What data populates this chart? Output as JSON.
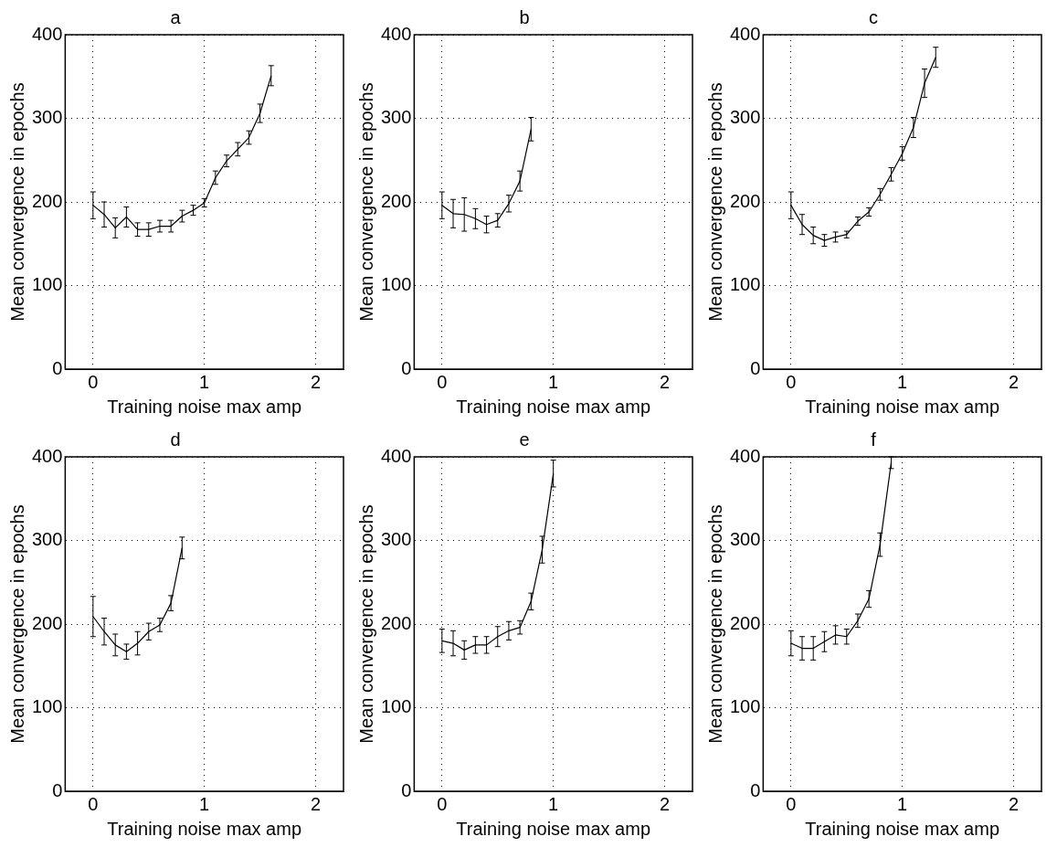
{
  "chart_data": [
    {
      "type": "line",
      "title": "a",
      "xlabel": "Training noise max amp",
      "ylabel": "Mean convergence in epochs",
      "color": "#000000",
      "x": [
        0,
        0.1,
        0.2,
        0.3,
        0.4,
        0.5,
        0.6,
        0.7,
        0.8,
        0.9,
        1.0,
        1.1,
        1.2,
        1.3,
        1.4,
        1.5,
        1.6
      ],
      "values": [
        196,
        185,
        169,
        182,
        167,
        167,
        171,
        171,
        183,
        190,
        199,
        229,
        249,
        263,
        277,
        306,
        351
      ],
      "errors": [
        16,
        15,
        12,
        12,
        8,
        8,
        7,
        7,
        7,
        6,
        5,
        8,
        7,
        8,
        8,
        11,
        12
      ],
      "xlim": [
        -0.25,
        2.25
      ],
      "xticks": [
        0,
        1,
        2
      ],
      "ylim": [
        0,
        400
      ],
      "yticks": [
        0,
        100,
        200,
        300,
        400
      ],
      "grid": true
    },
    {
      "type": "line",
      "title": "b",
      "xlabel": "Training noise max amp",
      "ylabel": "Mean convergence in epochs",
      "color": "#000000",
      "x": [
        0,
        0.1,
        0.2,
        0.3,
        0.4,
        0.5,
        0.6,
        0.7,
        0.8
      ],
      "values": [
        196,
        186,
        185,
        180,
        173,
        178,
        198,
        225,
        287
      ],
      "errors": [
        16,
        17,
        20,
        12,
        10,
        8,
        10,
        12,
        14
      ],
      "xlim": [
        -0.25,
        2.25
      ],
      "xticks": [
        0,
        1,
        2
      ],
      "ylim": [
        0,
        400
      ],
      "yticks": [
        0,
        100,
        200,
        300,
        400
      ],
      "grid": true
    },
    {
      "type": "line",
      "title": "c",
      "xlabel": "Training noise max amp",
      "ylabel": "Mean convergence in epochs",
      "color": "#000000",
      "x": [
        0,
        0.1,
        0.2,
        0.3,
        0.4,
        0.5,
        0.6,
        0.7,
        0.8,
        0.9,
        1.0,
        1.1,
        1.2,
        1.3
      ],
      "values": [
        196,
        173,
        160,
        154,
        158,
        161,
        177,
        188,
        209,
        233,
        258,
        289,
        342,
        373
      ],
      "errors": [
        16,
        12,
        10,
        7,
        6,
        4,
        5,
        5,
        7,
        8,
        8,
        12,
        17,
        12
      ],
      "xlim": [
        -0.25,
        2.25
      ],
      "xticks": [
        0,
        1,
        2
      ],
      "ylim": [
        0,
        400
      ],
      "yticks": [
        0,
        100,
        200,
        300,
        400
      ],
      "grid": true
    },
    {
      "type": "line",
      "title": "d",
      "xlabel": "Training noise max amp",
      "ylabel": "Mean convergence in epochs",
      "color": "#000000",
      "x": [
        0,
        0.1,
        0.2,
        0.3,
        0.4,
        0.5,
        0.6,
        0.7,
        0.8
      ],
      "values": [
        209,
        191,
        175,
        167,
        177,
        191,
        199,
        225,
        291
      ],
      "errors": [
        24,
        16,
        13,
        9,
        14,
        10,
        8,
        9,
        13
      ],
      "xlim": [
        -0.25,
        2.25
      ],
      "xticks": [
        0,
        1,
        2
      ],
      "ylim": [
        0,
        400
      ],
      "yticks": [
        0,
        100,
        200,
        300,
        400
      ],
      "grid": true
    },
    {
      "type": "line",
      "title": "e",
      "xlabel": "Training noise max amp",
      "ylabel": "Mean convergence in epochs",
      "color": "#000000",
      "x": [
        0,
        0.1,
        0.2,
        0.3,
        0.4,
        0.5,
        0.6,
        0.7,
        0.8,
        0.9,
        1.0
      ],
      "values": [
        180,
        177,
        169,
        175,
        175,
        185,
        192,
        196,
        227,
        289,
        380
      ],
      "errors": [
        14,
        15,
        11,
        10,
        10,
        12,
        11,
        8,
        10,
        16,
        16
      ],
      "xlim": [
        -0.25,
        2.25
      ],
      "xticks": [
        0,
        1,
        2
      ],
      "ylim": [
        0,
        400
      ],
      "yticks": [
        0,
        100,
        200,
        300,
        400
      ],
      "grid": true
    },
    {
      "type": "line",
      "title": "f",
      "xlabel": "Training noise max amp",
      "ylabel": "Mean convergence in epochs",
      "color": "#000000",
      "x": [
        0,
        0.1,
        0.2,
        0.3,
        0.4,
        0.5,
        0.6,
        0.7,
        0.8,
        0.9
      ],
      "values": [
        177,
        171,
        171,
        179,
        187,
        185,
        204,
        230,
        295,
        393
      ],
      "errors": [
        15,
        14,
        14,
        12,
        11,
        9,
        8,
        10,
        14,
        7
      ],
      "xlim": [
        -0.25,
        2.25
      ],
      "xticks": [
        0,
        1,
        2
      ],
      "ylim": [
        0,
        400
      ],
      "yticks": [
        0,
        100,
        200,
        300,
        400
      ],
      "grid": true
    }
  ]
}
